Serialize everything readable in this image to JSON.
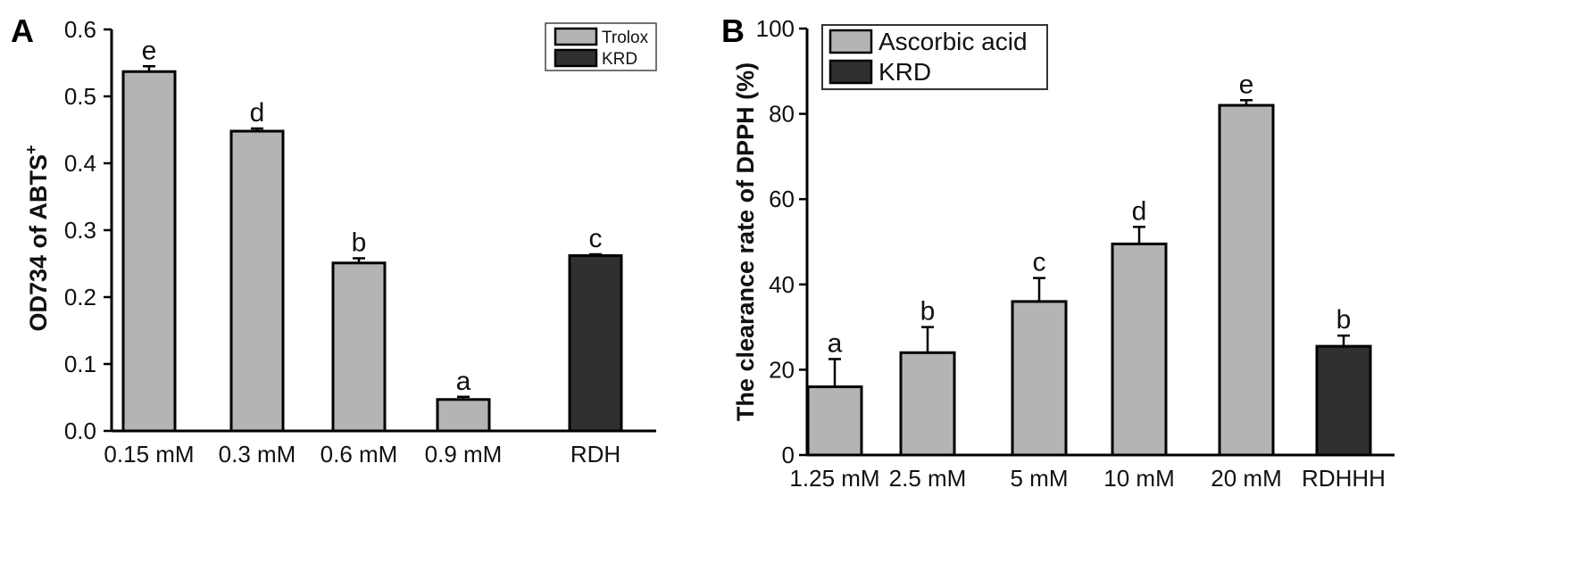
{
  "chart_data": [
    {
      "panel_label": "A",
      "type": "bar",
      "ylabel_main": "OD734 of ABTS",
      "ylabel_sup": "+",
      "ylim": [
        0,
        0.6
      ],
      "yticks": [
        "0.0",
        "0.1",
        "0.2",
        "0.3",
        "0.4",
        "0.5",
        "0.6"
      ],
      "categories": [
        "0.15 mM",
        "0.3 mM",
        "0.6 mM",
        "0.9 mM",
        "RDH"
      ],
      "values": [
        0.537,
        0.448,
        0.251,
        0.047,
        0.262
      ],
      "errors": [
        0.008,
        0.004,
        0.007,
        0.004,
        0.002
      ],
      "significance": [
        "e",
        "d",
        "b",
        "a",
        "c"
      ],
      "groups": [
        "Trolox",
        "Trolox",
        "Trolox",
        "Trolox",
        "KRD"
      ],
      "legend": [
        {
          "name": "Trolox",
          "color": "#b4b4b4"
        },
        {
          "name": "KRD",
          "color": "#303030"
        }
      ],
      "legend_position": "top-right"
    },
    {
      "panel_label": "B",
      "type": "bar",
      "ylabel_main": "The clearance rate of DPPH (%)",
      "ylim": [
        0,
        100
      ],
      "yticks": [
        "0",
        "20",
        "40",
        "60",
        "80",
        "100"
      ],
      "categories": [
        "1.25 mM",
        "2.5 mM",
        "5 mM",
        "10 mM",
        "20 mM",
        "RDHHH"
      ],
      "values": [
        16,
        24,
        36,
        49.5,
        82,
        25.5
      ],
      "errors": [
        6.5,
        6,
        5.5,
        4,
        1.2,
        2.5
      ],
      "significance": [
        "a",
        "b",
        "c",
        "d",
        "e",
        "b"
      ],
      "groups": [
        "Ascorbic acid",
        "Ascorbic acid",
        "Ascorbic acid",
        "Ascorbic acid",
        "Ascorbic acid",
        "KRD"
      ],
      "legend": [
        {
          "name": "Ascorbic acid",
          "color": "#b4b4b4"
        },
        {
          "name": "KRD",
          "color": "#303030"
        }
      ],
      "legend_position": "top-left"
    }
  ]
}
